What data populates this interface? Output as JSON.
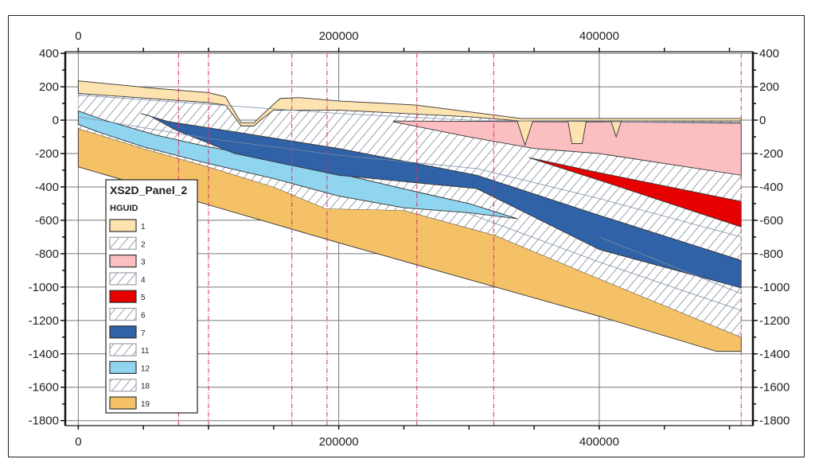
{
  "chart_data": {
    "type": "cross-section",
    "title": "XS2D_Panel_2",
    "xlim": [
      -10000,
      518000
    ],
    "ylim": [
      -1830,
      410
    ],
    "x_ticks": [
      0,
      200000,
      400000
    ],
    "x_tick_labels": [
      "0",
      "200000",
      "400000"
    ],
    "x_minor_step": 50000,
    "y_ticks": [
      400,
      200,
      0,
      -200,
      -400,
      -600,
      -800,
      -1000,
      -1200,
      -1400,
      -1600,
      -1800
    ],
    "y_tick_labels": [
      "400",
      "200",
      "0",
      "-200",
      "-400",
      "-600",
      "-800",
      "-1000",
      "-1200",
      "-1400",
      "-1600",
      "-1800"
    ],
    "y_minor_step": 100,
    "grid": true,
    "section_markers_x": [
      77000,
      100000,
      164000,
      191000,
      260000,
      319000,
      509000
    ],
    "legend": {
      "title": "XS2D_Panel_2",
      "field": "HGUID",
      "placement": "bottom-left",
      "entries": [
        {
          "label": "1",
          "fill": "#fde3b0",
          "hatch": false
        },
        {
          "label": "2",
          "fill": "#ffffff",
          "hatch": true
        },
        {
          "label": "3",
          "fill": "#fbbfc2",
          "hatch": false
        },
        {
          "label": "4",
          "fill": "#ffffff",
          "hatch": true
        },
        {
          "label": "5",
          "fill": "#e60000",
          "hatch": false
        },
        {
          "label": "6",
          "fill": "#ffffff",
          "hatch": true
        },
        {
          "label": "7",
          "fill": "#2f62a6",
          "hatch": false
        },
        {
          "label": "11",
          "fill": "#ffffff",
          "hatch": true
        },
        {
          "label": "12",
          "fill": "#8fd5f0",
          "hatch": false
        },
        {
          "label": "18",
          "fill": "#ffffff",
          "hatch": true
        },
        {
          "label": "19",
          "fill": "#f5c167",
          "hatch": false
        }
      ]
    },
    "layers": [
      {
        "hguid": "19",
        "fill": "#f5c167",
        "points": [
          [
            0,
            -50
          ],
          [
            15,
            -85
          ],
          [
            50,
            -170
          ],
          [
            100,
            -280
          ],
          [
            150,
            -400
          ],
          [
            190,
            -530
          ],
          [
            250,
            -540
          ],
          [
            320,
            -690
          ],
          [
            400,
            -950
          ],
          [
            509,
            -1300
          ],
          [
            509,
            -1385
          ],
          [
            490,
            -1385
          ],
          [
            400,
            -1175
          ],
          [
            200,
            -735
          ],
          [
            0,
            -280
          ]
        ]
      },
      {
        "hguid": "hatched 2/4/6/11/18",
        "fill": "hatch",
        "points": [
          [
            0,
            235
          ],
          [
            60,
            190
          ],
          [
            100,
            165
          ],
          [
            113,
            140
          ],
          [
            120,
            50
          ],
          [
            125,
            -15
          ],
          [
            135,
            -15
          ],
          [
            145,
            60
          ],
          [
            155,
            130
          ],
          [
            170,
            135
          ],
          [
            200,
            115
          ],
          [
            260,
            90
          ],
          [
            300,
            50
          ],
          [
            320,
            30
          ],
          [
            340,
            10
          ],
          [
            509,
            10
          ],
          [
            509,
            -1300
          ],
          [
            400,
            -950
          ],
          [
            320,
            -690
          ],
          [
            250,
            -540
          ],
          [
            190,
            -530
          ],
          [
            150,
            -400
          ],
          [
            100,
            -280
          ],
          [
            50,
            -170
          ],
          [
            15,
            -85
          ],
          [
            0,
            -50
          ]
        ]
      },
      {
        "hguid": "12",
        "fill": "#8fd5f0",
        "points": [
          [
            0,
            55
          ],
          [
            20,
            0
          ],
          [
            60,
            -90
          ],
          [
            100,
            -160
          ],
          [
            150,
            -230
          ],
          [
            200,
            -320
          ],
          [
            260,
            -430
          ],
          [
            300,
            -500
          ],
          [
            337,
            -590
          ],
          [
            300,
            -555
          ],
          [
            250,
            -525
          ],
          [
            200,
            -455
          ],
          [
            150,
            -350
          ],
          [
            100,
            -260
          ],
          [
            50,
            -160
          ],
          [
            15,
            -70
          ],
          [
            0,
            -25
          ]
        ]
      },
      {
        "hguid": "7",
        "fill": "#2f62a6",
        "points": [
          [
            48,
            40
          ],
          [
            70,
            -10
          ],
          [
            120,
            -70
          ],
          [
            200,
            -170
          ],
          [
            306,
            -330
          ],
          [
            400,
            -570
          ],
          [
            509,
            -840
          ],
          [
            509,
            -1005
          ],
          [
            400,
            -775
          ],
          [
            306,
            -410
          ],
          [
            200,
            -330
          ],
          [
            120,
            -200
          ],
          [
            75,
            -60
          ],
          [
            55,
            25
          ]
        ]
      },
      {
        "hguid": "5",
        "fill": "#e60000",
        "points": [
          [
            346,
            -225
          ],
          [
            400,
            -315
          ],
          [
            509,
            -487
          ],
          [
            509,
            -640
          ],
          [
            400,
            -360
          ]
        ]
      },
      {
        "hguid": "3",
        "fill": "#fbbfc2",
        "points": [
          [
            242,
            -5
          ],
          [
            509,
            -15
          ],
          [
            509,
            -330
          ],
          [
            400,
            -200
          ],
          [
            350,
            -170
          ],
          [
            300,
            -100
          ],
          [
            242,
            -10
          ]
        ]
      },
      {
        "hguid": "1",
        "fill": "#fde3b0",
        "points": [
          [
            0,
            235
          ],
          [
            60,
            190
          ],
          [
            100,
            165
          ],
          [
            113,
            140
          ],
          [
            120,
            50
          ],
          [
            125,
            -15
          ],
          [
            135,
            -15
          ],
          [
            145,
            60
          ],
          [
            155,
            130
          ],
          [
            170,
            135
          ],
          [
            200,
            115
          ],
          [
            260,
            90
          ],
          [
            300,
            50
          ],
          [
            320,
            30
          ],
          [
            340,
            10
          ],
          [
            509,
            10
          ],
          [
            509,
            -5
          ],
          [
            340,
            -5
          ],
          [
            300,
            20
          ],
          [
            200,
            60
          ],
          [
            150,
            60
          ],
          [
            140,
            0
          ],
          [
            135,
            -35
          ],
          [
            125,
            -35
          ],
          [
            120,
            20
          ],
          [
            113,
            90
          ],
          [
            100,
            105
          ],
          [
            0,
            160
          ]
        ]
      },
      {
        "hguid": "1",
        "fill": "#fde3b0",
        "points": [
          [
            337,
            -5
          ],
          [
            343,
            -150
          ],
          [
            349,
            -5
          ]
        ]
      },
      {
        "hguid": "1",
        "fill": "#fde3b0",
        "points": [
          [
            376,
            -5
          ],
          [
            379,
            -140
          ],
          [
            387,
            -140
          ],
          [
            390,
            -5
          ]
        ]
      },
      {
        "hguid": "1",
        "fill": "#fde3b0",
        "points": [
          [
            409,
            -5
          ],
          [
            413,
            -100
          ],
          [
            417,
            -5
          ]
        ]
      }
    ],
    "x_units_note": "layer point x values in thousands"
  }
}
